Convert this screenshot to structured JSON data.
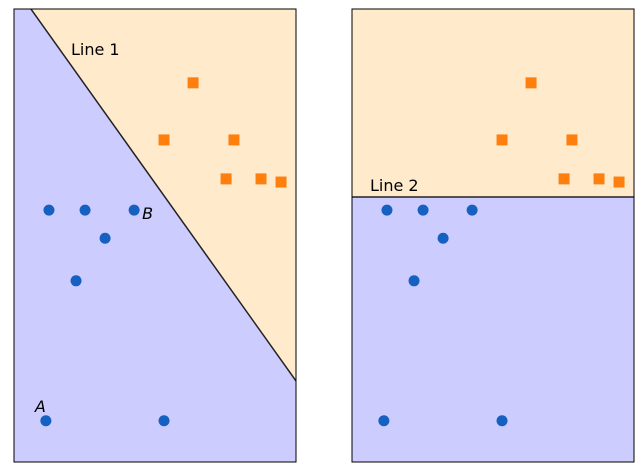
{
  "chart_data": [
    {
      "type": "scatter",
      "xlim": [
        0,
        10
      ],
      "ylim": [
        0,
        10
      ],
      "axes_visible": false,
      "grid": false,
      "series": [
        {
          "marker": "circle",
          "color": "#1560c0",
          "points": [
            [
              1.24,
              5.56
            ],
            [
              2.52,
              5.56
            ],
            [
              4.26,
              5.56
            ],
            [
              3.23,
              4.94
            ],
            [
              2.2,
              4.0
            ],
            [
              1.13,
              0.91
            ],
            [
              5.32,
              0.91
            ]
          ]
        },
        {
          "marker": "square",
          "color": "#ff7f0e",
          "points": [
            [
              6.35,
              8.37
            ],
            [
              5.32,
              7.11
            ],
            [
              7.8,
              7.11
            ],
            [
              7.52,
              6.25
            ],
            [
              8.76,
              6.25
            ],
            [
              9.47,
              6.18
            ]
          ]
        }
      ],
      "boundary": {
        "label": "Line 1",
        "from": [
          0.6,
          10
        ],
        "to": [
          10,
          1.79
        ]
      },
      "region_colors": {
        "below": "#ccccff",
        "above": "#ffebcc"
      },
      "annotations": [
        {
          "text": "A",
          "at": [
            1.13,
            0.91
          ]
        },
        {
          "text": "B",
          "at": [
            4.26,
            5.56
          ]
        }
      ]
    },
    {
      "type": "scatter",
      "xlim": [
        0,
        10
      ],
      "ylim": [
        0,
        10
      ],
      "axes_visible": false,
      "grid": false,
      "series": [
        {
          "marker": "circle",
          "color": "#1560c0",
          "points": [
            [
              1.24,
              5.56
            ],
            [
              2.52,
              5.56
            ],
            [
              4.26,
              5.56
            ],
            [
              3.23,
              4.94
            ],
            [
              2.2,
              4.0
            ],
            [
              1.13,
              0.91
            ],
            [
              5.32,
              0.91
            ]
          ]
        },
        {
          "marker": "square",
          "color": "#ff7f0e",
          "points": [
            [
              6.35,
              8.37
            ],
            [
              5.32,
              7.11
            ],
            [
              7.8,
              7.11
            ],
            [
              7.52,
              6.25
            ],
            [
              8.76,
              6.25
            ],
            [
              9.47,
              6.18
            ]
          ]
        }
      ],
      "boundary": {
        "label": "Line 2",
        "from": [
          0,
          5.85
        ],
        "to": [
          10,
          5.85
        ]
      },
      "region_colors": {
        "below": "#ccccff",
        "above": "#ffebcc"
      },
      "annotations": []
    }
  ]
}
